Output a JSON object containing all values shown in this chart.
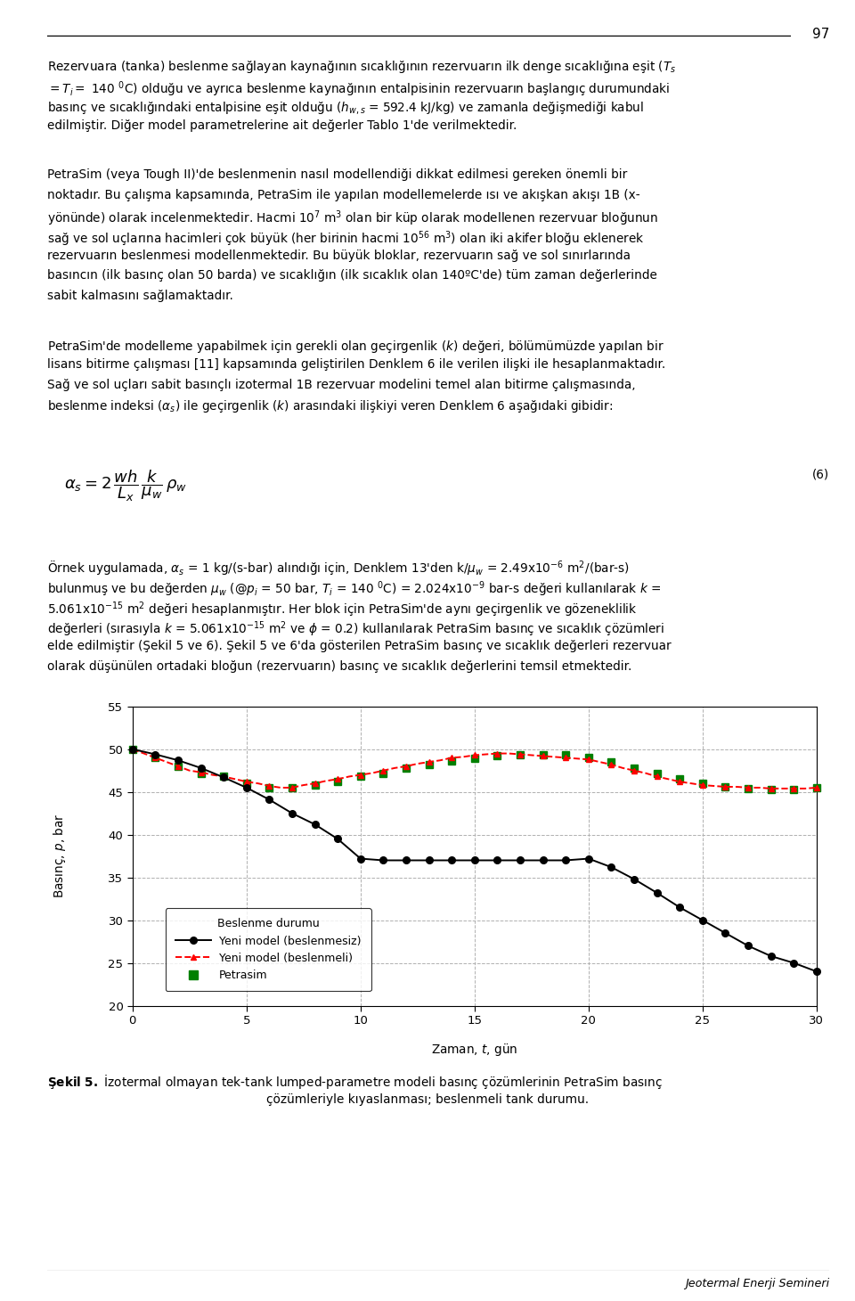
{
  "page_number": "97",
  "footer_text": "Jeotermal Enerji Semineri",
  "chart": {
    "xlim": [
      0,
      30
    ],
    "ylim": [
      20,
      55
    ],
    "xticks": [
      0,
      5,
      10,
      15,
      20,
      25,
      30
    ],
    "yticks": [
      20,
      25,
      30,
      35,
      40,
      45,
      50,
      55
    ],
    "black_line_x": [
      0,
      1,
      2,
      3,
      4,
      5,
      6,
      7,
      8,
      9,
      10,
      11,
      12,
      13,
      14,
      15,
      16,
      17,
      18,
      19,
      20,
      21,
      22,
      23,
      24,
      25,
      26,
      27,
      28,
      29,
      30
    ],
    "black_line_y": [
      50.0,
      49.4,
      48.7,
      47.8,
      46.7,
      45.5,
      44.1,
      42.5,
      41.2,
      39.5,
      37.2,
      37.0,
      37.0,
      37.0,
      37.0,
      37.0,
      37.0,
      37.0,
      37.0,
      37.0,
      37.2,
      36.2,
      34.8,
      33.2,
      31.5,
      30.0,
      28.5,
      27.0,
      25.8,
      25.0,
      24.0
    ],
    "red_line_x": [
      0,
      0.5,
      1,
      1.5,
      2,
      2.5,
      3,
      3.5,
      4,
      4.5,
      5,
      5.5,
      6,
      6.5,
      7,
      7.5,
      8,
      8.5,
      9,
      9.5,
      10,
      10.5,
      11,
      11.5,
      12,
      12.5,
      13,
      13.5,
      14,
      14.5,
      15,
      15.5,
      16,
      16.5,
      17,
      17.5,
      18,
      18.5,
      19,
      19.5,
      20,
      20.5,
      21,
      21.5,
      22,
      22.5,
      23,
      23.5,
      24,
      24.5,
      25,
      25.5,
      26,
      26.5,
      27,
      27.5,
      28,
      28.5,
      29,
      29.5,
      30
    ],
    "red_line_y": [
      50.0,
      49.5,
      49.0,
      48.5,
      48.0,
      47.5,
      47.3,
      47.0,
      46.8,
      46.5,
      46.2,
      46.0,
      45.7,
      45.5,
      45.5,
      45.8,
      46.0,
      46.3,
      46.5,
      46.8,
      47.0,
      47.2,
      47.5,
      47.8,
      48.0,
      48.3,
      48.5,
      48.7,
      49.0,
      49.1,
      49.3,
      49.4,
      49.5,
      49.5,
      49.4,
      49.3,
      49.2,
      49.1,
      49.0,
      48.9,
      48.8,
      48.5,
      48.2,
      47.8,
      47.5,
      47.2,
      46.8,
      46.5,
      46.2,
      46.0,
      45.8,
      45.7,
      45.6,
      45.6,
      45.5,
      45.5,
      45.4,
      45.4,
      45.4,
      45.4,
      45.5
    ],
    "green_x": [
      0,
      1,
      2,
      3,
      4,
      5,
      6,
      7,
      8,
      9,
      10,
      11,
      12,
      13,
      14,
      15,
      16,
      17,
      18,
      19,
      20,
      21,
      22,
      23,
      24,
      25,
      26,
      27,
      28,
      29,
      30
    ],
    "green_y": [
      50.0,
      49.0,
      48.0,
      47.2,
      46.8,
      46.0,
      45.5,
      45.5,
      45.8,
      46.2,
      46.8,
      47.2,
      47.8,
      48.2,
      48.6,
      48.9,
      49.2,
      49.4,
      49.4,
      49.3,
      49.0,
      48.5,
      47.8,
      47.2,
      46.5,
      46.0,
      45.6,
      45.4,
      45.3,
      45.3,
      45.5
    ],
    "legend_title": "Beslenme durumu",
    "legend_labels": [
      "Yeni model (beslenmesiz)",
      "Yeni model (beslenmeli)",
      "Petrasim"
    ]
  }
}
